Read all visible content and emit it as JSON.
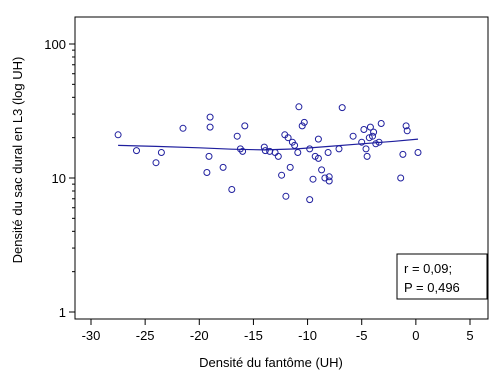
{
  "chart_data": {
    "type": "scatter",
    "title": "",
    "xlabel": "Densité du fantôme (UH)",
    "ylabel": "Densité du sac dural en L3 (log UH)",
    "xlim": [
      -31,
      5
    ],
    "ylim": [
      1,
      100
    ],
    "yscale": "log",
    "grid": false,
    "x_ticks": [
      -30,
      -25,
      -20,
      -15,
      -10,
      -5,
      0,
      5
    ],
    "x_tick_labels": [
      "-30",
      "-25",
      "-20",
      "-15",
      "-10",
      "-5",
      "0",
      "5"
    ],
    "y_ticks": [
      1,
      10,
      100
    ],
    "y_tick_labels": [
      "1",
      "10",
      "100"
    ],
    "point_color": "#1f1f9e",
    "line_color": "#1f1f9e",
    "points": [
      [
        -27.5,
        21
      ],
      [
        -25.8,
        16
      ],
      [
        -24,
        13
      ],
      [
        -23.5,
        15.5
      ],
      [
        -21.5,
        23.5
      ],
      [
        -19.3,
        11
      ],
      [
        -19.1,
        14.5
      ],
      [
        -19,
        28.5
      ],
      [
        -19,
        24
      ],
      [
        -17.8,
        12
      ],
      [
        -17,
        8.2
      ],
      [
        -16.5,
        20.5
      ],
      [
        -16.2,
        16.5
      ],
      [
        -16,
        15.8
      ],
      [
        -15.8,
        24.5
      ],
      [
        -14,
        17
      ],
      [
        -13.9,
        16
      ],
      [
        -13.5,
        15.8
      ],
      [
        -13,
        15.5
      ],
      [
        -12.7,
        14.5
      ],
      [
        -12.4,
        10.5
      ],
      [
        -12.1,
        21
      ],
      [
        -12,
        7.3
      ],
      [
        -11.8,
        20
      ],
      [
        -11.6,
        12
      ],
      [
        -11.4,
        18.5
      ],
      [
        -11.2,
        17.5
      ],
      [
        -10.9,
        15.5
      ],
      [
        -10.8,
        34
      ],
      [
        -10.5,
        24.5
      ],
      [
        -10.3,
        26
      ],
      [
        -9.8,
        16.5
      ],
      [
        -9.8,
        6.9
      ],
      [
        -9.5,
        9.8
      ],
      [
        -9.3,
        14.5
      ],
      [
        -9,
        19.5
      ],
      [
        -9,
        14
      ],
      [
        -8.7,
        11.5
      ],
      [
        -8.4,
        10
      ],
      [
        -8.1,
        15.5
      ],
      [
        -8,
        9.5
      ],
      [
        -8,
        10.2
      ],
      [
        -7.1,
        16.5
      ],
      [
        -6.8,
        33.5
      ],
      [
        -5.8,
        20.5
      ],
      [
        -5,
        18.5
      ],
      [
        -4.8,
        23
      ],
      [
        -4.6,
        16.5
      ],
      [
        -4.5,
        14.5
      ],
      [
        -4.3,
        20
      ],
      [
        -4.2,
        24
      ],
      [
        -4,
        20.5
      ],
      [
        -3.9,
        22
      ],
      [
        -3.7,
        18
      ],
      [
        -3.4,
        18.5
      ],
      [
        -3.2,
        25.5
      ],
      [
        -1.4,
        10
      ],
      [
        -1.2,
        15
      ],
      [
        -0.9,
        24.5
      ],
      [
        -0.8,
        22.5
      ],
      [
        0.2,
        15.5
      ]
    ],
    "fit_line": [
      [
        -27.5,
        17.5
      ],
      [
        -24,
        17.2
      ],
      [
        -20,
        16.8
      ],
      [
        -17,
        16.4
      ],
      [
        -14,
        16.2
      ],
      [
        -11,
        16.5
      ],
      [
        -8,
        17.2
      ],
      [
        -5,
        18
      ],
      [
        -2,
        18.8
      ],
      [
        0.2,
        19.5
      ]
    ],
    "annotation": [
      "r = 0,09;",
      "P = 0,496"
    ]
  }
}
